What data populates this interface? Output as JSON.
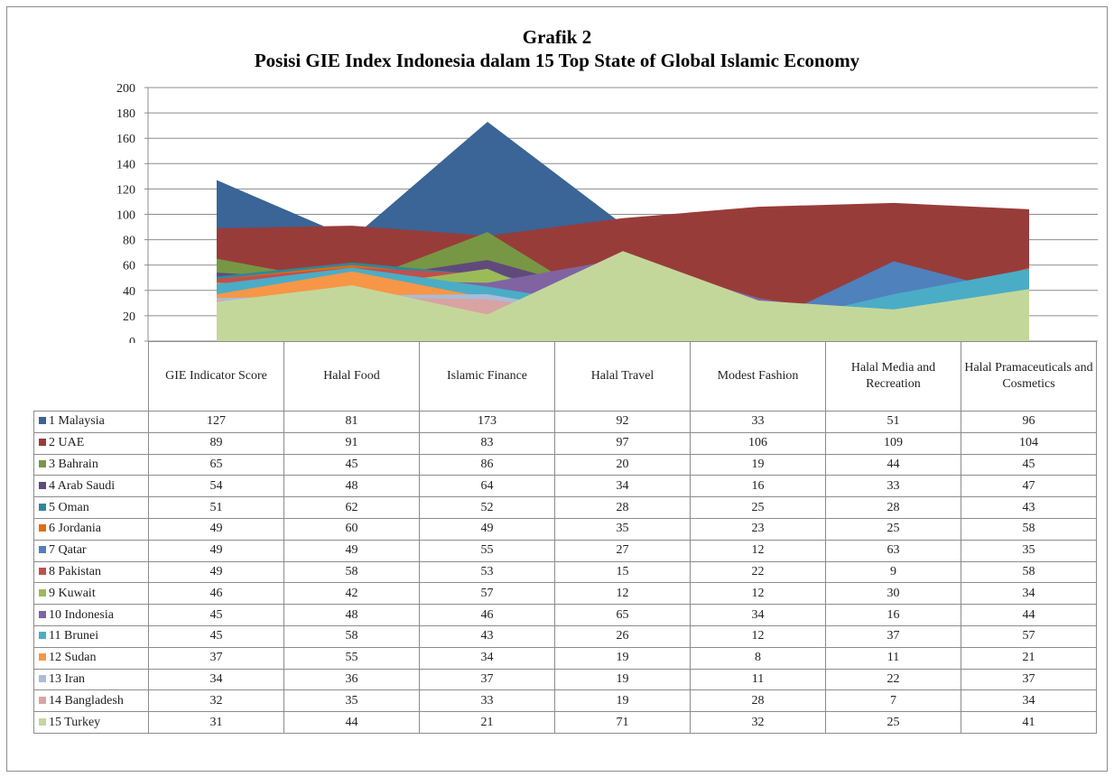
{
  "chart_data": {
    "type": "area",
    "title": "Grafik 2",
    "subtitle": "Posisi GIE Index Indonesia dalam 15 Top State of Global Islamic Economy",
    "categories": [
      "GIE Indicator Score",
      "Halal Food",
      "Islamic Finance",
      "Halal Travel",
      "Modest Fashion",
      "Halal Media and Recreation",
      "Halal Pramaceuticals and Cosmetics"
    ],
    "ylim": [
      0,
      200
    ],
    "yticks": [
      0,
      20,
      40,
      60,
      80,
      100,
      120,
      140,
      160,
      180,
      200
    ],
    "grid": true,
    "legend": "data-table",
    "series": [
      {
        "name": "1 Malaysia",
        "color": "#3b6497",
        "values": [
          127,
          81,
          173,
          92,
          33,
          51,
          96
        ]
      },
      {
        "name": "2 UAE",
        "color": "#983c3a",
        "values": [
          89,
          91,
          83,
          97,
          106,
          109,
          104
        ]
      },
      {
        "name": "3 Bahrain",
        "color": "#779744",
        "values": [
          65,
          45,
          86,
          20,
          19,
          44,
          45
        ]
      },
      {
        "name": "4 Arab Saudi",
        "color": "#604a7b",
        "values": [
          54,
          48,
          64,
          34,
          16,
          33,
          47
        ]
      },
      {
        "name": "5 Oman",
        "color": "#31869b",
        "values": [
          51,
          62,
          52,
          28,
          25,
          28,
          43
        ]
      },
      {
        "name": "6 Jordania",
        "color": "#e46c0a",
        "values": [
          49,
          60,
          49,
          35,
          23,
          25,
          58
        ]
      },
      {
        "name": "7 Qatar",
        "color": "#4f81bd",
        "values": [
          49,
          49,
          55,
          27,
          12,
          63,
          35
        ]
      },
      {
        "name": "8 Pakistan",
        "color": "#c0504d",
        "values": [
          49,
          58,
          53,
          15,
          22,
          9,
          58
        ]
      },
      {
        "name": "9 Kuwait",
        "color": "#9bbb59",
        "values": [
          46,
          42,
          57,
          12,
          12,
          30,
          34
        ]
      },
      {
        "name": "10 Indonesia",
        "color": "#8064a2",
        "values": [
          45,
          48,
          46,
          65,
          34,
          16,
          44
        ]
      },
      {
        "name": "11 Brunei",
        "color": "#4bacc6",
        "values": [
          45,
          58,
          43,
          26,
          12,
          37,
          57
        ]
      },
      {
        "name": "12 Sudan",
        "color": "#f79646",
        "values": [
          37,
          55,
          34,
          19,
          8,
          11,
          21
        ]
      },
      {
        "name": "13 Iran",
        "color": "#a9bcd9",
        "values": [
          34,
          36,
          37,
          19,
          11,
          22,
          37
        ]
      },
      {
        "name": "14 Bangladesh",
        "color": "#d9a3a2",
        "values": [
          32,
          35,
          33,
          19,
          28,
          7,
          34
        ]
      },
      {
        "name": "15 Turkey",
        "color": "#c4d79b",
        "values": [
          31,
          44,
          21,
          71,
          32,
          25,
          41
        ]
      }
    ]
  }
}
